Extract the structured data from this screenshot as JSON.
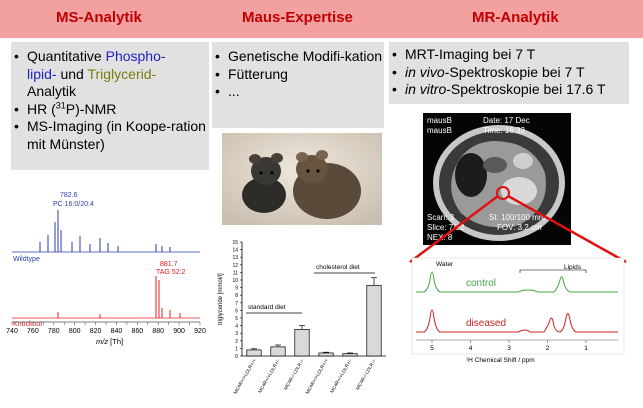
{
  "header": {
    "col1_title": "MS-Analytik",
    "col2_title": "Maus-Expertise",
    "col3_title": "MR-Analytik"
  },
  "ms_panel": {
    "item1_a": "Quantitative ",
    "item1_b": "Phospho-",
    "item1_c": "lipid-",
    "item1_d": " und ",
    "item1_e": "Triglycerid-",
    "item1_f": "Analytik",
    "item2_a": "HR (",
    "item2_sup": "31",
    "item2_b": "P)-NMR",
    "item3": "MS-Imaging (in Koope-ration mit Münster)"
  },
  "mouse_panel": {
    "item1": "Genetische Modifi-kation",
    "item2": "Fütterung",
    "item3": "..."
  },
  "mr_panel": {
    "item1": "MRT-Imaging bei 7 T",
    "item2_i": "in vivo",
    "item2_b": "-Spektroskopie bei 7 T",
    "item3_i": "in vitro",
    "item3_b": "-Spektroskopie bei 17.6 T"
  },
  "ms_spectrum": {
    "peak1_mz": "782.6",
    "peak1_name": "PC 16:0/20:4",
    "peak2_mz": "881.7",
    "peak2_name": "TAG 52:2",
    "label_wildtype": "Wildtype",
    "label_knockout": "Knockout",
    "x_ticks": [
      "740",
      "750",
      "760",
      "770",
      "780",
      "790",
      "800",
      "810",
      "820",
      "830",
      "840",
      "850",
      "860",
      "870",
      "880",
      "890",
      "900",
      "910",
      "920"
    ],
    "xlabel_italic": "m/z",
    "xlabel_unit": " [Th]",
    "color_wildtype": "#2b3ea8",
    "color_knockout": "#e02020"
  },
  "chart_data": {
    "type": "bar",
    "ylabel": "triglyceride [mmol/l]",
    "ylim": [
      0,
      15
    ],
    "yticks": [
      "0",
      "1",
      "2",
      "3",
      "4",
      "5",
      "6",
      "7",
      "8",
      "9",
      "10",
      "11",
      "12",
      "13",
      "14",
      "15"
    ],
    "categories": [
      "MC4R+/+LDLR+/+",
      "MC4R+/+LDLR+/-",
      "MC4R-/-LDLR-/-",
      "MC4R+/+LDLR+/+",
      "MC4R+/+LDLR+/-",
      "MC4R-/-LDLR-/-"
    ],
    "values": [
      0.8,
      1.2,
      3.5,
      0.4,
      0.3,
      9.3
    ],
    "errors": [
      0.15,
      0.25,
      0.5,
      0.1,
      0.1,
      1.0
    ],
    "annotations": [
      "standard diet",
      "cholesterol diet"
    ]
  },
  "mri": {
    "line1_left": "mausB",
    "line1_right": "Date: 17 Dec",
    "line2_left": "mausB",
    "line2_right": "Time: 16:32",
    "bottom1_left": "Scan: 3",
    "bottom1_right": "SI: 100/100 mm",
    "bottom2_left": "Slice: 7/12",
    "bottom2_right": "FOV: 3.2 cm",
    "bottom3_left": "NEX: 8"
  },
  "nmr": {
    "label_water": "Water",
    "label_lipids": "Lipids",
    "label_control": "control",
    "label_diseased": "diseased",
    "x_ticks": [
      "5",
      "4",
      "3",
      "2",
      "1"
    ],
    "xlabel": "¹H Chemical Shift / ppm",
    "color_control": "#44aa44",
    "color_diseased": "#cc2222"
  }
}
